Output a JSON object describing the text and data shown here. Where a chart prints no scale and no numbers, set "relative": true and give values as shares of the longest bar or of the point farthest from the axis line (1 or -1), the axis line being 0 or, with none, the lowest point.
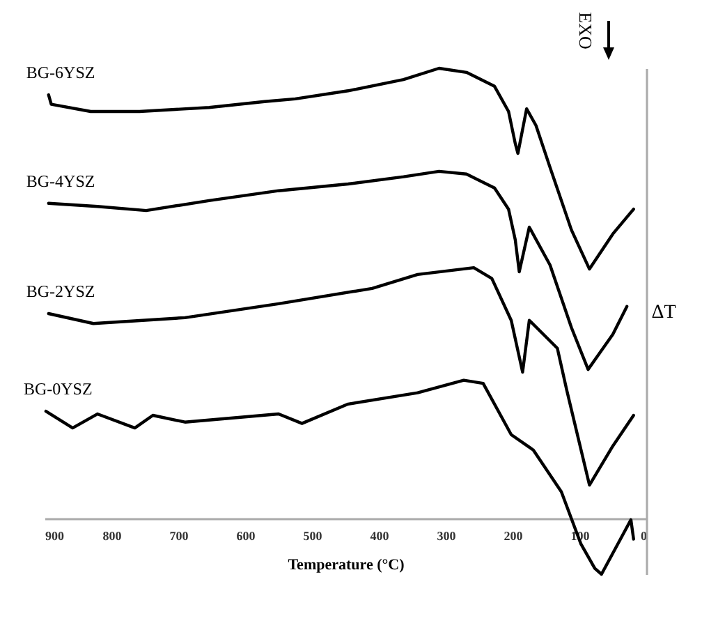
{
  "chart_data": {
    "type": "line",
    "relative": true,
    "xlabel": "Temperature (°C)",
    "ylabel": "ΔT",
    "annotations": [
      "EXO"
    ],
    "xlim": [
      900,
      0
    ],
    "xticks": [
      900,
      800,
      700,
      600,
      500,
      400,
      300,
      200,
      100,
      0
    ],
    "grid": false,
    "legend": false,
    "marker": "none",
    "line_style": "solid",
    "series": [
      {
        "name": "BG-6YSZ",
        "color": "#000000",
        "x": [
          894,
          890,
          831,
          758,
          654,
          571,
          525,
          446,
          363,
          310,
          269,
          227,
          206,
          196,
          192,
          179,
          165,
          144,
          112,
          85,
          50,
          19
        ],
        "values": [
          0.941,
          0.92,
          0.904,
          0.904,
          0.913,
          0.926,
          0.932,
          0.95,
          0.975,
          1.0,
          0.991,
          0.96,
          0.904,
          0.833,
          0.811,
          0.91,
          0.873,
          0.78,
          0.641,
          0.554,
          0.632,
          0.687
        ]
      },
      {
        "name": "BG-4YSZ",
        "color": "#000000",
        "x": [
          894,
          821,
          748,
          654,
          550,
          446,
          363,
          310,
          269,
          227,
          206,
          196,
          190,
          175,
          144,
          112,
          87,
          50,
          29
        ],
        "values": [
          0.7,
          0.693,
          0.684,
          0.706,
          0.728,
          0.743,
          0.759,
          0.771,
          0.765,
          0.734,
          0.687,
          0.619,
          0.548,
          0.647,
          0.563,
          0.424,
          0.331,
          0.409,
          0.471
        ]
      },
      {
        "name": "BG-2YSZ",
        "color": "#000000",
        "x": [
          894,
          827,
          690,
          550,
          410,
          342,
          258,
          231,
          202,
          185,
          175,
          133,
          119,
          85,
          50,
          19
        ],
        "values": [
          0.455,
          0.433,
          0.446,
          0.477,
          0.511,
          0.542,
          0.557,
          0.533,
          0.44,
          0.325,
          0.44,
          0.378,
          0.285,
          0.074,
          0.161,
          0.229
        ]
      },
      {
        "name": "BG-0YSZ",
        "color": "#000000",
        "x": [
          898,
          858,
          821,
          765,
          738,
          690,
          550,
          515,
          446,
          342,
          273,
          244,
          202,
          169,
          127,
          98,
          77,
          67,
          23,
          19
        ],
        "values": [
          0.238,
          0.201,
          0.232,
          0.201,
          0.229,
          0.214,
          0.232,
          0.211,
          0.254,
          0.279,
          0.307,
          0.3,
          0.186,
          0.152,
          0.059,
          -0.056,
          -0.111,
          -0.124,
          -0.003,
          -0.046
        ]
      }
    ]
  }
}
